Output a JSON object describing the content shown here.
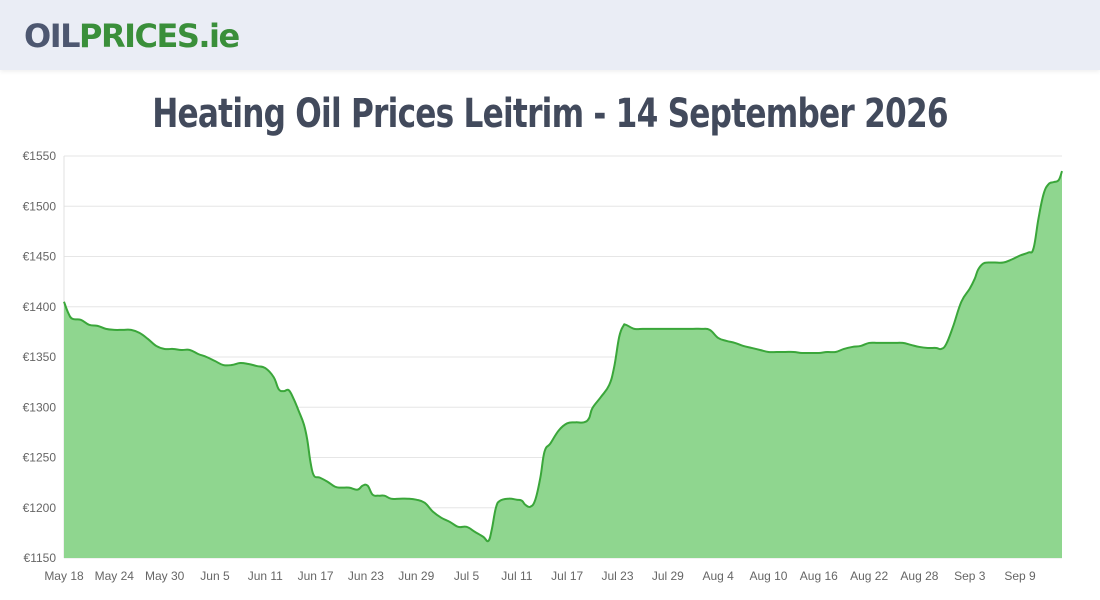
{
  "header": {
    "logo": {
      "part1": "OIL",
      "part2": "PRICES",
      "part3": ".ie"
    }
  },
  "title": "Heating Oil Prices Leitrim - 14 September 2026",
  "colors": {
    "header_bg": "#eaedf5",
    "brand_green": "#3a8f3a",
    "brand_grey": "#4d5770",
    "line": "#3aa63a",
    "fill": "#8fd68f"
  },
  "chart_data": {
    "type": "area",
    "title": "",
    "xlabel": "",
    "ylabel": "",
    "ylim": [
      1150,
      1550
    ],
    "yticks": [
      1150,
      1200,
      1250,
      1300,
      1350,
      1400,
      1450,
      1500,
      1550
    ],
    "ytick_labels": [
      "€1150",
      "€1200",
      "€1250",
      "€1300",
      "€1350",
      "€1400",
      "€1450",
      "€1500",
      "€1550"
    ],
    "xticks": [
      {
        "label": "May 18",
        "day": 0
      },
      {
        "label": "May 24",
        "day": 6
      },
      {
        "label": "May 30",
        "day": 12
      },
      {
        "label": "Jun 5",
        "day": 18
      },
      {
        "label": "Jun 11",
        "day": 24
      },
      {
        "label": "Jun 17",
        "day": 30
      },
      {
        "label": "Jun 23",
        "day": 36
      },
      {
        "label": "Jun 29",
        "day": 42
      },
      {
        "label": "Jul 5",
        "day": 48
      },
      {
        "label": "Jul 11",
        "day": 54
      },
      {
        "label": "Jul 17",
        "day": 60
      },
      {
        "label": "Jul 23",
        "day": 66
      },
      {
        "label": "Jul 29",
        "day": 72
      },
      {
        "label": "Aug 4",
        "day": 78
      },
      {
        "label": "Aug 10",
        "day": 84
      },
      {
        "label": "Aug 16",
        "day": 90
      },
      {
        "label": "Aug 22",
        "day": 96
      },
      {
        "label": "Aug 28",
        "day": 102
      },
      {
        "label": "Sep 3",
        "day": 108
      },
      {
        "label": "Sep 9",
        "day": 114
      }
    ],
    "xlim_days": [
      0,
      119
    ],
    "grid": true,
    "legend": "none",
    "series": [
      {
        "points": [
          [
            0,
            1405
          ],
          [
            0.5,
            1394
          ],
          [
            1,
            1388
          ],
          [
            2,
            1387
          ],
          [
            3,
            1382
          ],
          [
            4,
            1381
          ],
          [
            5,
            1378
          ],
          [
            6,
            1377
          ],
          [
            7,
            1377
          ],
          [
            8,
            1377
          ],
          [
            9,
            1374
          ],
          [
            10,
            1368
          ],
          [
            11,
            1361
          ],
          [
            12,
            1358
          ],
          [
            13,
            1358
          ],
          [
            14,
            1357
          ],
          [
            15,
            1357
          ],
          [
            16,
            1353
          ],
          [
            17,
            1350
          ],
          [
            18,
            1346
          ],
          [
            19,
            1342
          ],
          [
            20,
            1342
          ],
          [
            21,
            1344
          ],
          [
            22,
            1343
          ],
          [
            23,
            1341
          ],
          [
            24,
            1339
          ],
          [
            25,
            1330
          ],
          [
            25.6,
            1318
          ],
          [
            26.2,
            1316
          ],
          [
            26.8,
            1317
          ],
          [
            27.4,
            1308
          ],
          [
            28,
            1296
          ],
          [
            28.6,
            1283
          ],
          [
            29,
            1268
          ],
          [
            29.4,
            1245
          ],
          [
            29.8,
            1232
          ],
          [
            30.5,
            1230
          ],
          [
            31.4,
            1226
          ],
          [
            32.3,
            1221
          ],
          [
            33,
            1220
          ],
          [
            34,
            1220
          ],
          [
            35,
            1218
          ],
          [
            35.6,
            1222
          ],
          [
            36.2,
            1222
          ],
          [
            36.8,
            1213
          ],
          [
            37.5,
            1212
          ],
          [
            38.2,
            1212
          ],
          [
            39,
            1209
          ],
          [
            40,
            1209
          ],
          [
            41,
            1209
          ],
          [
            42,
            1208
          ],
          [
            43,
            1205
          ],
          [
            44,
            1196
          ],
          [
            45,
            1190
          ],
          [
            46,
            1186
          ],
          [
            47,
            1181
          ],
          [
            48,
            1181
          ],
          [
            49,
            1176
          ],
          [
            50,
            1171
          ],
          [
            50.6,
            1167
          ],
          [
            51,
            1178
          ],
          [
            51.5,
            1200
          ],
          [
            52,
            1207
          ],
          [
            53,
            1209
          ],
          [
            54,
            1208
          ],
          [
            54.6,
            1207
          ],
          [
            55,
            1203
          ],
          [
            55.6,
            1201
          ],
          [
            56.2,
            1208
          ],
          [
            56.8,
            1230
          ],
          [
            57.3,
            1256
          ],
          [
            58,
            1264
          ],
          [
            59,
            1277
          ],
          [
            60,
            1284
          ],
          [
            61,
            1285
          ],
          [
            62,
            1285
          ],
          [
            62.6,
            1289
          ],
          [
            63,
            1299
          ],
          [
            64,
            1310
          ],
          [
            65,
            1322
          ],
          [
            65.6,
            1340
          ],
          [
            66.2,
            1370
          ],
          [
            66.7,
            1381
          ],
          [
            67,
            1382
          ],
          [
            68,
            1378
          ],
          [
            69,
            1378
          ],
          [
            70,
            1378
          ],
          [
            71,
            1378
          ],
          [
            72,
            1378
          ],
          [
            73,
            1378
          ],
          [
            74,
            1378
          ],
          [
            75,
            1378
          ],
          [
            76,
            1378
          ],
          [
            77,
            1377
          ],
          [
            78,
            1369
          ],
          [
            79,
            1366
          ],
          [
            80,
            1364
          ],
          [
            81,
            1361
          ],
          [
            82,
            1359
          ],
          [
            83,
            1357
          ],
          [
            84,
            1355
          ],
          [
            85,
            1355
          ],
          [
            86,
            1355
          ],
          [
            87,
            1355
          ],
          [
            88,
            1354
          ],
          [
            89,
            1354
          ],
          [
            90,
            1354
          ],
          [
            91,
            1355
          ],
          [
            92,
            1355
          ],
          [
            93,
            1358
          ],
          [
            94,
            1360
          ],
          [
            95,
            1361
          ],
          [
            96,
            1364
          ],
          [
            97,
            1364
          ],
          [
            98,
            1364
          ],
          [
            99,
            1364
          ],
          [
            100,
            1364
          ],
          [
            101,
            1362
          ],
          [
            102,
            1360
          ],
          [
            103,
            1359
          ],
          [
            104,
            1359
          ],
          [
            104.6,
            1358
          ],
          [
            105.2,
            1363
          ],
          [
            106,
            1380
          ],
          [
            107,
            1405
          ],
          [
            108,
            1418
          ],
          [
            108.6,
            1428
          ],
          [
            109,
            1437
          ],
          [
            109.6,
            1443
          ],
          [
            110.2,
            1444
          ],
          [
            111,
            1444
          ],
          [
            112,
            1444
          ],
          [
            113,
            1447
          ],
          [
            114,
            1451
          ],
          [
            115,
            1454
          ],
          [
            115.6,
            1458
          ],
          [
            116.2,
            1488
          ],
          [
            116.8,
            1512
          ],
          [
            117.4,
            1522
          ],
          [
            118,
            1524
          ],
          [
            118.6,
            1526
          ],
          [
            119,
            1535
          ]
        ]
      }
    ]
  }
}
